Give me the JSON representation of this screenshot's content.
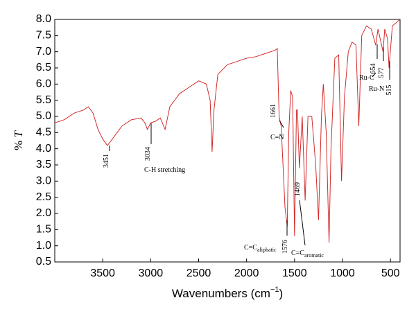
{
  "chart_data": {
    "type": "line",
    "y_label": [
      "% ",
      "T"
    ],
    "x_label": [
      "Wavenumbers (cm",
      "−1",
      ")"
    ],
    "xlim": [
      4000,
      400
    ],
    "ylim": [
      0.5,
      8.0
    ],
    "xticks": [
      3500,
      3000,
      2500,
      2000,
      1500,
      1000,
      500
    ],
    "yticks": [
      {
        "value": 0.5,
        "label": "0.5"
      },
      {
        "value": 1,
        "label": "1.0"
      },
      {
        "value": 1.5,
        "label": "1.5"
      },
      {
        "value": 2,
        "label": "2.0"
      },
      {
        "value": 2.5,
        "label": "2.5"
      },
      {
        "value": 3,
        "label": "3.0"
      },
      {
        "value": 3.5,
        "label": "3.5"
      },
      {
        "value": 4,
        "label": "4.0"
      },
      {
        "value": 4.5,
        "label": "4.5"
      },
      {
        "value": 5,
        "label": "5.0"
      },
      {
        "value": 5.5,
        "label": "5.5"
      },
      {
        "value": 6,
        "label": "6.0"
      },
      {
        "value": 6.5,
        "label": "6.5"
      },
      {
        "value": 7,
        "label": "7.0"
      },
      {
        "value": 7.5,
        "label": "7.5"
      },
      {
        "value": 8,
        "label": "8.0"
      }
    ],
    "series": [
      {
        "color": "#d42a2a",
        "x": [
          4000,
          3900,
          3800,
          3700,
          3650,
          3600,
          3550,
          3500,
          3451,
          3400,
          3300,
          3200,
          3100,
          3060,
          3034,
          3000,
          2950,
          2900,
          2850,
          2800,
          2700,
          2600,
          2500,
          2420,
          2380,
          2360,
          2340,
          2300,
          2200,
          2100,
          2000,
          1900,
          1800,
          1750,
          1700,
          1680,
          1661,
          1640,
          1620,
          1600,
          1576,
          1560,
          1540,
          1520,
          1500,
          1480,
          1469,
          1450,
          1420,
          1390,
          1360,
          1320,
          1280,
          1250,
          1220,
          1200,
          1170,
          1140,
          1120,
          1080,
          1040,
          1010,
          980,
          940,
          900,
          860,
          830,
          800,
          750,
          700,
          654,
          630,
          577,
          560,
          530,
          515,
          480,
          440,
          400
        ],
        "values": [
          4.8,
          4.9,
          5.1,
          5.2,
          5.3,
          5.1,
          4.6,
          4.3,
          4.1,
          4.3,
          4.7,
          4.9,
          4.95,
          4.8,
          4.6,
          4.8,
          4.85,
          4.95,
          4.6,
          5.3,
          5.7,
          5.9,
          6.1,
          6.0,
          5.5,
          3.9,
          5.2,
          6.3,
          6.6,
          6.7,
          6.8,
          6.85,
          6.95,
          7.0,
          7.05,
          7.1,
          5.0,
          4.7,
          3.5,
          2.2,
          1.6,
          4.5,
          5.8,
          5.6,
          1.3,
          5.2,
          5.2,
          3.4,
          5.0,
          2.4,
          5.0,
          5.0,
          3.5,
          1.8,
          5.0,
          6.0,
          4.5,
          1.1,
          4.0,
          6.8,
          6.9,
          3.0,
          5.6,
          7.0,
          7.3,
          7.2,
          4.7,
          7.5,
          7.8,
          7.7,
          7.2,
          7.7,
          7.0,
          7.7,
          7.4,
          6.5,
          7.8,
          7.9,
          8.0
        ]
      }
    ],
    "annotations": [
      {
        "text": "3451"
      },
      {
        "text": "3034"
      },
      {
        "text": "C-H stretching"
      },
      {
        "text": "1661"
      },
      {
        "text": "C=N"
      },
      {
        "text": "1576"
      },
      {
        "text": "C=C",
        "sub": "aliphatic"
      },
      {
        "text": "1469"
      },
      {
        "text": "C=C",
        "sub": "aromatic"
      },
      {
        "text": "654"
      },
      {
        "text": "Ru-C"
      },
      {
        "text": "577"
      },
      {
        "text": "Ru-N"
      },
      {
        "text": "515"
      }
    ]
  }
}
